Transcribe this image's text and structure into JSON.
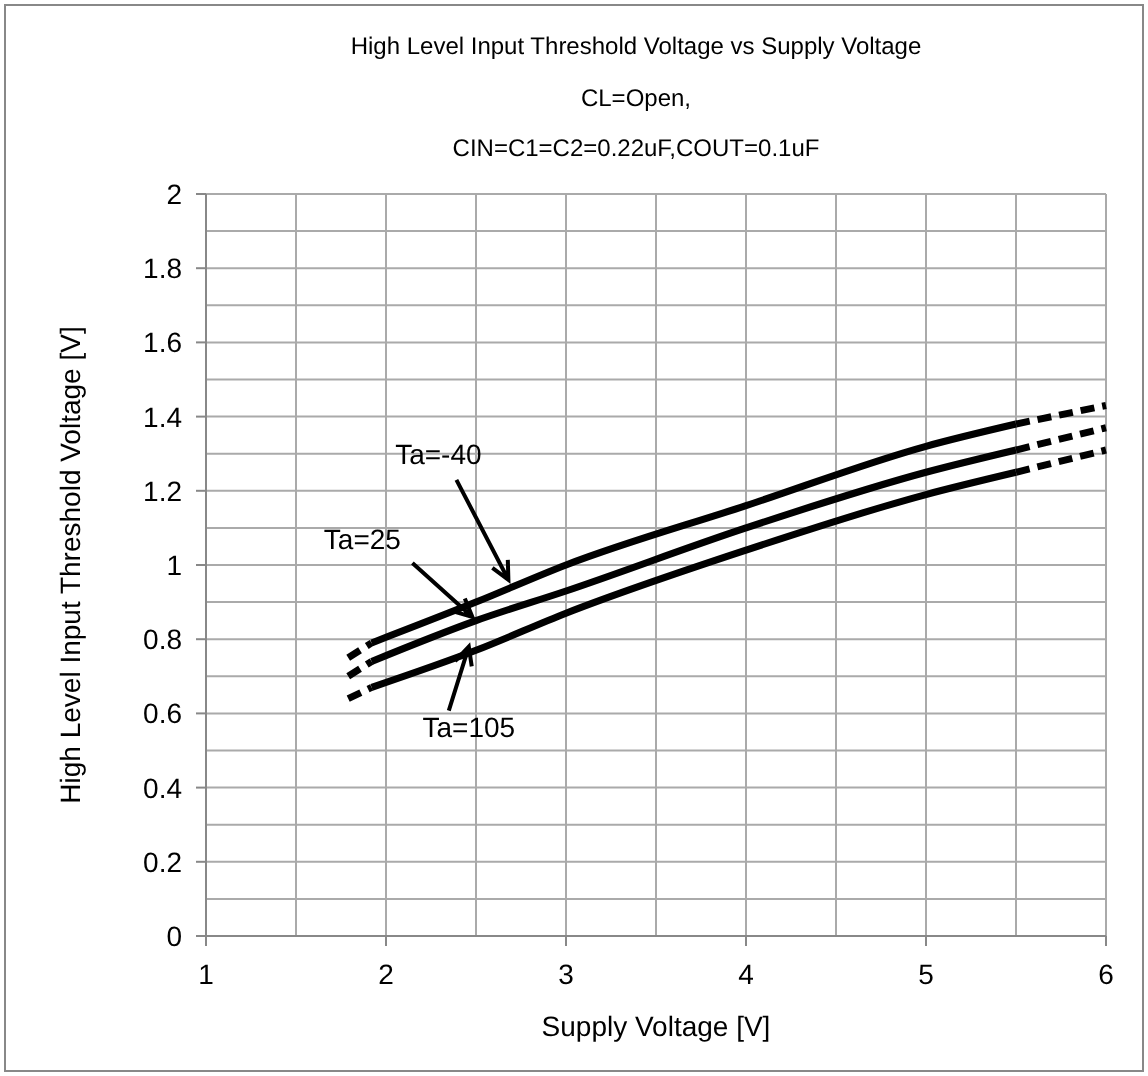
{
  "chart_data": {
    "type": "line",
    "title": "High Level Input Threshold Voltage vs Supply Voltage",
    "subtitle": "CL=Open,\nCIN=C1=C2=0.22uF,COUT=0.1uF",
    "xlabel": "Supply Voltage [V]",
    "ylabel": "High Level Input Threshold Voltage [V]",
    "xlim": [
      1,
      6
    ],
    "xticks": [
      1,
      {
        "value": 1.5,
        "label": null
      },
      2,
      {
        "value": 2.5,
        "label": null
      },
      3,
      {
        "value": 3.5,
        "label": null
      },
      4,
      {
        "value": 4.5,
        "label": null
      },
      5,
      {
        "value": 5.5,
        "label": null
      },
      6
    ],
    "ylim": [
      0,
      2
    ],
    "yticks": [
      0,
      {
        "value": 0.1,
        "label": null
      },
      0.2,
      {
        "value": 0.3,
        "label": null
      },
      0.4,
      {
        "value": 0.5,
        "label": null
      },
      0.6,
      {
        "value": 0.7,
        "label": null
      },
      0.8,
      {
        "value": 0.9,
        "label": null
      },
      1,
      {
        "value": 1.1,
        "label": null
      },
      1.2,
      {
        "value": 1.3,
        "label": null
      },
      1.4,
      {
        "value": 1.5,
        "label": null
      },
      1.6,
      {
        "value": 1.7,
        "label": null
      },
      1.8,
      {
        "value": 1.9,
        "label": null
      },
      2
    ],
    "grid": true,
    "marker": "none",
    "series": [
      {
        "color": "#000000",
        "line_style": "solid",
        "x": [
          1.92,
          2.5,
          3,
          4,
          5,
          5.5
        ],
        "values": [
          0.79,
          0.9,
          1.0,
          1.16,
          1.32,
          1.38
        ]
      },
      {
        "color": "#000000",
        "line_style": "solid",
        "x": [
          1.92,
          2.5,
          3,
          4,
          5,
          5.5
        ],
        "values": [
          0.74,
          0.85,
          0.93,
          1.1,
          1.25,
          1.31
        ]
      },
      {
        "color": "#000000",
        "line_style": "solid",
        "x": [
          1.92,
          2.5,
          3,
          4,
          5,
          5.5
        ],
        "values": [
          0.67,
          0.77,
          0.87,
          1.04,
          1.19,
          1.25
        ]
      },
      {
        "color": "#000000",
        "line_style": "dashed",
        "x": [
          1.79,
          1.92
        ],
        "values": [
          0.75,
          0.79
        ]
      },
      {
        "color": "#000000",
        "line_style": "dashed",
        "x": [
          1.79,
          1.92
        ],
        "values": [
          0.7,
          0.74
        ]
      },
      {
        "color": "#000000",
        "line_style": "dashed",
        "x": [
          1.79,
          1.92
        ],
        "values": [
          0.64,
          0.67
        ]
      },
      {
        "color": "#000000",
        "line_style": "dashed",
        "x": [
          5.5,
          6
        ],
        "values": [
          1.38,
          1.43
        ]
      },
      {
        "color": "#000000",
        "line_style": "dashed",
        "x": [
          5.5,
          6
        ],
        "values": [
          1.31,
          1.37
        ]
      },
      {
        "color": "#000000",
        "line_style": "dashed",
        "x": [
          5.5,
          6
        ],
        "values": [
          1.25,
          1.31
        ]
      }
    ],
    "annotations": [
      {
        "text": "Ta=-40",
        "x": 2.68,
        "y": 0.96
      },
      {
        "text": "Ta=25",
        "x": 2.48,
        "y": 0.86
      },
      {
        "text": "Ta=105",
        "x": 2.46,
        "y": 0.78
      }
    ]
  }
}
